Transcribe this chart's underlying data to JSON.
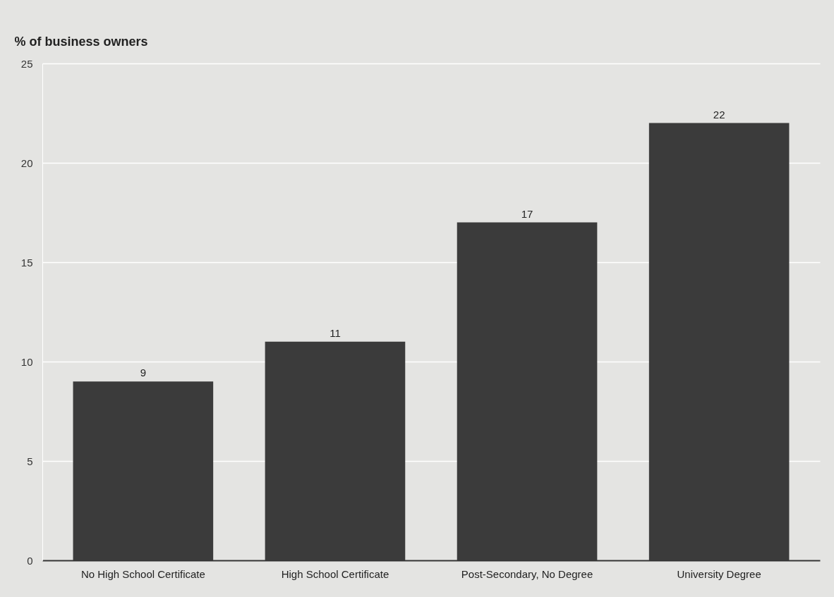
{
  "chart_data": {
    "type": "bar",
    "ylabel": "% of business owners",
    "categories": [
      "No High School Certificate",
      "High School Certificate",
      "Post-Secondary, No Degree",
      "University Degree"
    ],
    "values": [
      9,
      11,
      17,
      22
    ],
    "color": "#3b3b3b",
    "ylim": [
      0,
      25
    ],
    "yticks": [
      0,
      5,
      10,
      15,
      20,
      25
    ],
    "grid": "y",
    "data_labels": true
  }
}
